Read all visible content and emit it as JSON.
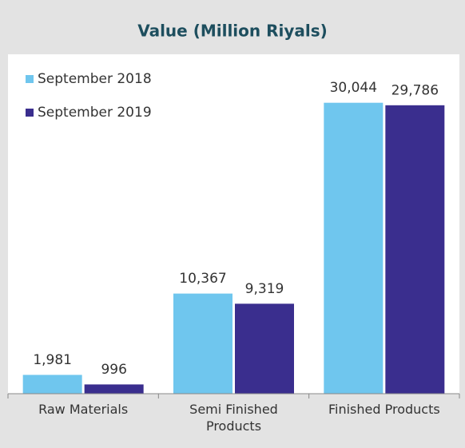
{
  "chart_data": {
    "type": "bar",
    "title": "Value (Million Riyals)",
    "categories": [
      "Raw Materials",
      "Semi Finished Products",
      "Finished Products"
    ],
    "series": [
      {
        "name": "September 2018",
        "color": "#6fc6ee",
        "values": [
          1981,
          10367,
          30044
        ],
        "value_labels": [
          "1,981",
          "10,367",
          "30,044"
        ]
      },
      {
        "name": "September 2019",
        "color": "#3a2e8e",
        "values": [
          996,
          9319,
          29786
        ],
        "value_labels": [
          "996",
          "9,319",
          "29,786"
        ]
      }
    ],
    "ylim": [
      0,
      35000
    ],
    "legend": "top-left"
  }
}
